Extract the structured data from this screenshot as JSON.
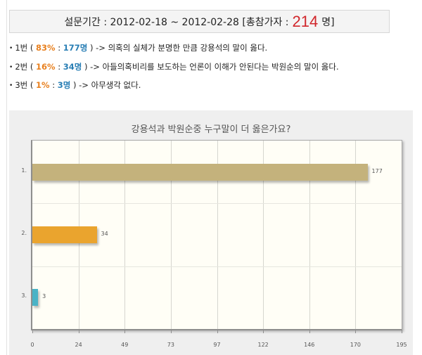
{
  "survey": {
    "period_label": "설문기간 : 2012-02-18 ~ 2012-02-28 [총참가자 :",
    "total_count": "214",
    "total_unit": "명]"
  },
  "results": [
    {
      "bullet": "•",
      "prefix": "1번 ( ",
      "pct": "83%",
      "sep": " : ",
      "count": "177명",
      "suffix": " ) -> 의혹의 실체가 분명한 만큼 강용석의 말이 옳다."
    },
    {
      "bullet": "•",
      "prefix": "2번 ( ",
      "pct": "16%",
      "sep": " : ",
      "count": "34명",
      "suffix": " ) -> 아들의혹비리를 보도하는 언론이 이해가 안된다는 박원순의 말이 옳다."
    },
    {
      "bullet": "•",
      "prefix": "3번 ( ",
      "pct": "1%",
      "sep": " : ",
      "count": "3명",
      "suffix": " ) -> 아무생각 없다."
    }
  ],
  "chart_data": {
    "type": "bar",
    "orientation": "horizontal",
    "title": "강용석과 박원순중 누구말이 더 옳은가요?",
    "categories": [
      "1.",
      "2.",
      "3."
    ],
    "values": [
      177,
      34,
      3
    ],
    "value_labels": [
      "177",
      "34",
      "3"
    ],
    "colors": [
      "#c4b27c",
      "#eaa42e",
      "#4ab3c6"
    ],
    "xlabel": "",
    "ylabel": "",
    "xlim": [
      0,
      195
    ],
    "x_ticks": [
      "0",
      "24",
      "49",
      "73",
      "97",
      "122",
      "146",
      "170",
      "195"
    ],
    "grid": true,
    "legend": "none"
  }
}
